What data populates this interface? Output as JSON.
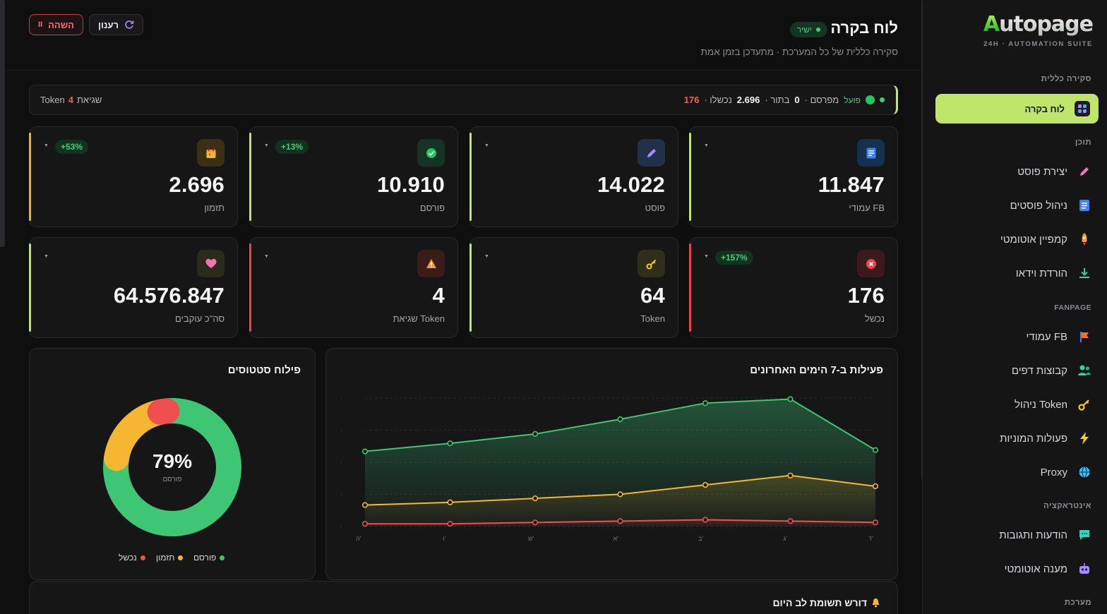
{
  "app": {
    "logo_brand": "Autopage",
    "logo_sub": "24H · AUTOMATION SUITE"
  },
  "sidebar": {
    "sections": [
      {
        "label": "סקירה כללית"
      },
      {
        "label": "תוכן"
      },
      {
        "label": "FANPAGE"
      },
      {
        "label": "אינטראקציה"
      },
      {
        "label": "מערכת"
      }
    ],
    "items": [
      {
        "label": "לוח בקרה",
        "icon": "dashboard-grid-icon",
        "active": true
      },
      {
        "label": "יצירת פוסט",
        "icon": "pencil-icon"
      },
      {
        "label": "ניהול פוסטים",
        "icon": "document-icon"
      },
      {
        "label": "קמפיין אוטומטי",
        "icon": "rocket-icon"
      },
      {
        "label": "הורדת וידאו",
        "icon": "download-icon"
      },
      {
        "label": "עמודי FB",
        "icon": "flag-icon"
      },
      {
        "label": "קבוצות דפים",
        "icon": "users-icon"
      },
      {
        "label": "ניהול Token",
        "icon": "key-icon"
      },
      {
        "label": "פעולות המוניות",
        "icon": "lightning-icon"
      },
      {
        "label": "Proxy",
        "icon": "globe-icon"
      },
      {
        "label": "הודעות ותגובות",
        "icon": "chat-icon"
      },
      {
        "label": "מענה אוטומטי",
        "icon": "robot-icon"
      }
    ]
  },
  "header": {
    "title": "לוח בקרה",
    "live_badge": "ישיר",
    "subtitle": "סקירה כללית של כל המערכת · מתעדכן בזמן אמת",
    "refresh_label": "רענון",
    "pause_label": "השהה"
  },
  "statusbar": {
    "active": "פועל",
    "published_label": "· מפרסם",
    "published_value": "0",
    "queue_label": "· בתור",
    "queue_value": "2.696",
    "failed_label": "· נכשלו",
    "failed_value": "176",
    "errors_label": "שגיאת",
    "errors_value": "4",
    "errors_suffix": "Token"
  },
  "stats": [
    {
      "value": "11.847",
      "label": "עמודי FB",
      "icon": "document-icon",
      "accent": "#bfe66a",
      "badge": ""
    },
    {
      "value": "14.022",
      "label": "פוסט",
      "icon": "pencil-icon",
      "accent": "#bfe66a",
      "badge": ""
    },
    {
      "value": "10.910",
      "label": "פורסם",
      "icon": "check-circle-icon",
      "accent": "#bfe66a",
      "badge": "+13%"
    },
    {
      "value": "2.696",
      "label": "תזמון",
      "icon": "calendar-icon",
      "accent": "#f4b52c",
      "badge": "+53%"
    },
    {
      "value": "176",
      "label": "נכשל",
      "icon": "x-circle-icon",
      "accent": "#ef4444",
      "badge": "+157%"
    },
    {
      "value": "64",
      "label": "Token",
      "icon": "key-icon",
      "accent": "#bfe66a",
      "badge": ""
    },
    {
      "value": "4",
      "label": "שגיאת Token",
      "icon": "warning-icon",
      "accent": "#ef4444",
      "badge": ""
    },
    {
      "value": "64.576.847",
      "label": "סה\"כ עוקבים",
      "icon": "heart-icon",
      "accent": "#bfe66a",
      "badge": ""
    }
  ],
  "status_panel": {
    "title": "פילוח סטטוסים",
    "center_value": "79%",
    "center_label": "פורסם",
    "legend": [
      {
        "label": "פורסם",
        "color": "#3ec674"
      },
      {
        "label": "תזמון",
        "color": "#f5b731"
      },
      {
        "label": "נכשל",
        "color": "#ef4f4f"
      }
    ]
  },
  "activity_panel": {
    "title": "פעילות ב-7 הימים האחרונים"
  },
  "attention_panel": {
    "title": "דורש תשומת לב היום",
    "icon": "bell-icon"
  },
  "chart_data": [
    {
      "type": "pie",
      "title": "פילוח סטטוסים",
      "categories": [
        "פורסם",
        "תזמון",
        "נכשל"
      ],
      "values": [
        79,
        19,
        2
      ],
      "colors": [
        "#3ec674",
        "#f5b731",
        "#ef4f4f"
      ]
    },
    {
      "type": "area",
      "title": "פעילות ב-7 הימים האחרונים",
      "categories": [
        "ה'",
        "ו'",
        "ש'",
        "א'",
        "ב'",
        "ג'",
        "ד'"
      ],
      "ylim": [
        0,
        100
      ],
      "grid": true,
      "series": [
        {
          "values": [
            56,
            62,
            69,
            80,
            92,
            95,
            57
          ],
          "color": "#3ec674"
        },
        {
          "values": [
            16,
            18,
            21,
            24,
            31,
            38,
            30
          ],
          "color": "#f5b731"
        },
        {
          "values": [
            2,
            2,
            3,
            4,
            5,
            4,
            3
          ],
          "color": "#ef4f4f"
        }
      ]
    }
  ]
}
